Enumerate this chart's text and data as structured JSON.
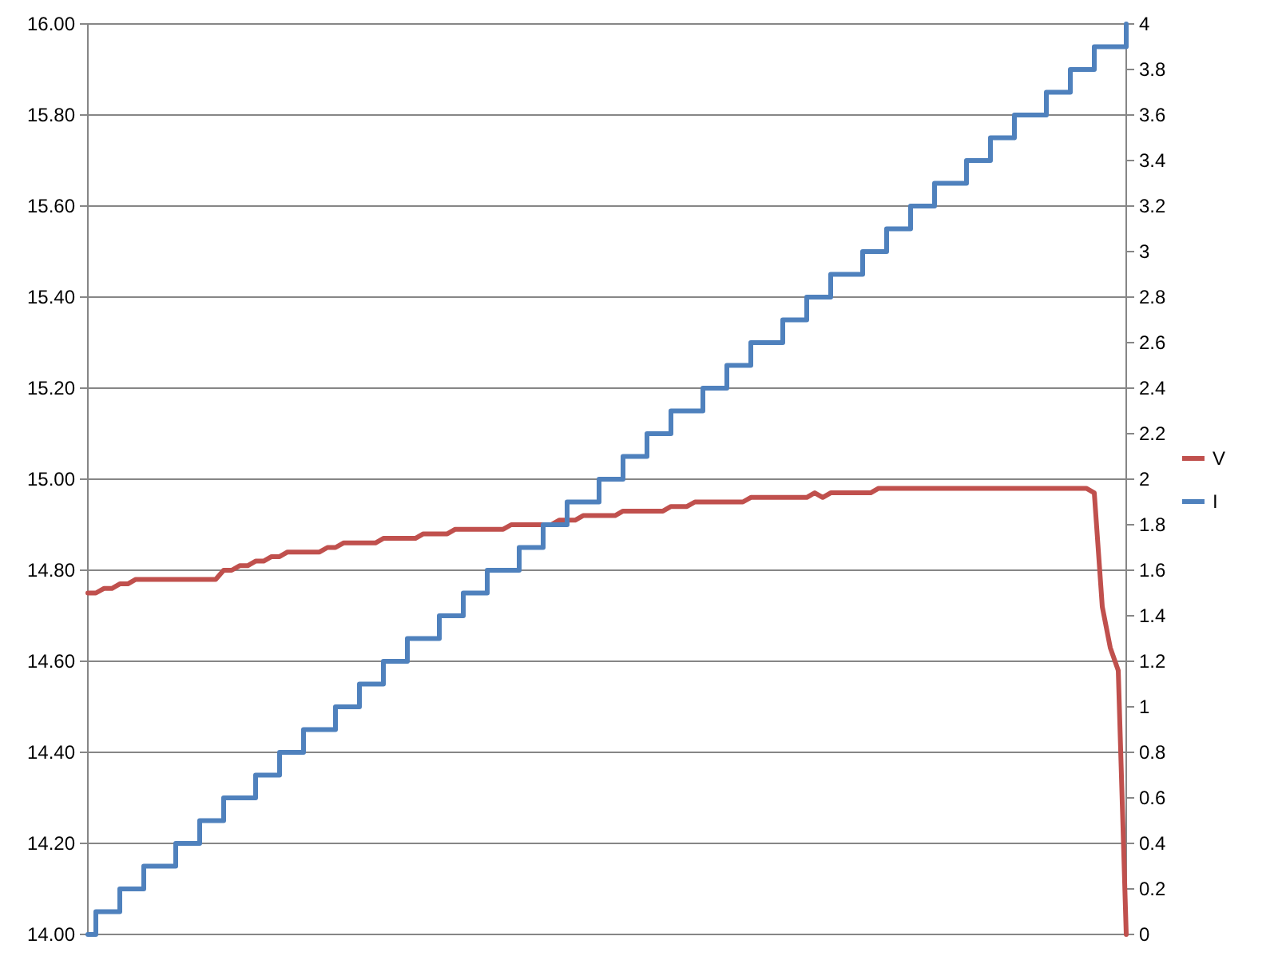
{
  "chart_data": {
    "type": "line",
    "categories": [
      null,
      null,
      null,
      null,
      null,
      null,
      null,
      null,
      null,
      null,
      null,
      null,
      null,
      null,
      null,
      null,
      null,
      null,
      null,
      null,
      null,
      null,
      null,
      null,
      null,
      null,
      null,
      null,
      null,
      null,
      null,
      null,
      null,
      null,
      null,
      null,
      null,
      null,
      null,
      null,
      null,
      null,
      null,
      null,
      null,
      null,
      null,
      null,
      null,
      null,
      null,
      null,
      null,
      null,
      null,
      null,
      null,
      null,
      null,
      null,
      null,
      null,
      null,
      null,
      null,
      null,
      null,
      null,
      null,
      null,
      null,
      null,
      null,
      null,
      null,
      null,
      null,
      null,
      null,
      null,
      null,
      null,
      null,
      null,
      null,
      null,
      null,
      null,
      null,
      null,
      null,
      null,
      null,
      null,
      null,
      null,
      null,
      null,
      null,
      null,
      null,
      null,
      null,
      null,
      null,
      null,
      null,
      null,
      null,
      null,
      null,
      null,
      null,
      null,
      null,
      null,
      null,
      null,
      null,
      null,
      null,
      null,
      null,
      null,
      null,
      null,
      null,
      null,
      null,
      null,
      null
    ],
    "series": [
      {
        "name": "V",
        "color": "#c0504d",
        "values": [
          14.75,
          14.75,
          14.76,
          14.76,
          14.77,
          14.77,
          14.78,
          14.78,
          14.78,
          14.78,
          14.78,
          14.78,
          14.78,
          14.78,
          14.78,
          14.78,
          14.78,
          14.8,
          14.8,
          14.81,
          14.81,
          14.82,
          14.82,
          14.83,
          14.83,
          14.84,
          14.84,
          14.84,
          14.84,
          14.84,
          14.85,
          14.85,
          14.86,
          14.86,
          14.86,
          14.86,
          14.86,
          14.87,
          14.87,
          14.87,
          14.87,
          14.87,
          14.88,
          14.88,
          14.88,
          14.88,
          14.89,
          14.89,
          14.89,
          14.89,
          14.89,
          14.89,
          14.89,
          14.9,
          14.9,
          14.9,
          14.9,
          14.9,
          14.9,
          14.91,
          14.91,
          14.91,
          14.92,
          14.92,
          14.92,
          14.92,
          14.92,
          14.93,
          14.93,
          14.93,
          14.93,
          14.93,
          14.93,
          14.94,
          14.94,
          14.94,
          14.95,
          14.95,
          14.95,
          14.95,
          14.95,
          14.95,
          14.95,
          14.96,
          14.96,
          14.96,
          14.96,
          14.96,
          14.96,
          14.96,
          14.96,
          14.97,
          14.96,
          14.97,
          14.97,
          14.97,
          14.97,
          14.97,
          14.97,
          14.98,
          14.98,
          14.98,
          14.98,
          14.98,
          14.98,
          14.98,
          14.98,
          14.98,
          14.98,
          14.98,
          14.98,
          14.98,
          14.98,
          14.98,
          14.98,
          14.98,
          14.98,
          14.98,
          14.98,
          14.98,
          14.98,
          14.98,
          14.98,
          14.98,
          14.98,
          14.98,
          14.97,
          14.72,
          14.63,
          14.58,
          14.0
        ]
      },
      {
        "name": "I",
        "color": "#4f81bd",
        "type": "step",
        "axis": "y2",
        "values": [
          0,
          0.1,
          0.1,
          0.1,
          0.2,
          0.2,
          0.2,
          0.3,
          0.3,
          0.3,
          0.3,
          0.4,
          0.4,
          0.4,
          0.5,
          0.5,
          0.5,
          0.6,
          0.6,
          0.6,
          0.6,
          0.7,
          0.7,
          0.7,
          0.8,
          0.8,
          0.8,
          0.9,
          0.9,
          0.9,
          0.9,
          1.0,
          1.0,
          1.0,
          1.1,
          1.1,
          1.1,
          1.2,
          1.2,
          1.2,
          1.3,
          1.3,
          1.3,
          1.3,
          1.4,
          1.4,
          1.4,
          1.5,
          1.5,
          1.5,
          1.6,
          1.6,
          1.6,
          1.6,
          1.7,
          1.7,
          1.7,
          1.8,
          1.8,
          1.8,
          1.9,
          1.9,
          1.9,
          1.9,
          2.0,
          2.0,
          2.0,
          2.1,
          2.1,
          2.1,
          2.2,
          2.2,
          2.2,
          2.3,
          2.3,
          2.3,
          2.3,
          2.4,
          2.4,
          2.4,
          2.5,
          2.5,
          2.5,
          2.6,
          2.6,
          2.6,
          2.6,
          2.7,
          2.7,
          2.7,
          2.8,
          2.8,
          2.8,
          2.9,
          2.9,
          2.9,
          2.9,
          3.0,
          3.0,
          3.0,
          3.1,
          3.1,
          3.1,
          3.2,
          3.2,
          3.2,
          3.3,
          3.3,
          3.3,
          3.3,
          3.4,
          3.4,
          3.4,
          3.5,
          3.5,
          3.5,
          3.6,
          3.6,
          3.6,
          3.6,
          3.7,
          3.7,
          3.7,
          3.8,
          3.8,
          3.8,
          3.9,
          3.9,
          3.9,
          3.9,
          4.0
        ]
      }
    ],
    "ylim": [
      14,
      16
    ],
    "yticks": [
      {
        "value": 14,
        "label": "14.00"
      },
      {
        "value": 14.2,
        "label": "14.20"
      },
      {
        "value": 14.4,
        "label": "14.40"
      },
      {
        "value": 14.6,
        "label": "14.60"
      },
      {
        "value": 14.8,
        "label": "14.80"
      },
      {
        "value": 15,
        "label": "15.00"
      },
      {
        "value": 15.2,
        "label": "15.20"
      },
      {
        "value": 15.4,
        "label": "15.40"
      },
      {
        "value": 15.6,
        "label": "15.60"
      },
      {
        "value": 15.8,
        "label": "15.80"
      },
      {
        "value": 16,
        "label": "16.00"
      }
    ],
    "y2lim": [
      0,
      4
    ],
    "y2ticks": [
      0,
      0.2,
      0.4,
      0.6,
      0.8,
      1,
      1.2,
      1.4,
      1.6,
      1.8,
      2,
      2.2,
      2.4,
      2.6,
      2.8,
      3,
      3.2,
      3.4,
      3.6,
      3.8,
      4
    ],
    "grid": "y",
    "legend": "right"
  }
}
